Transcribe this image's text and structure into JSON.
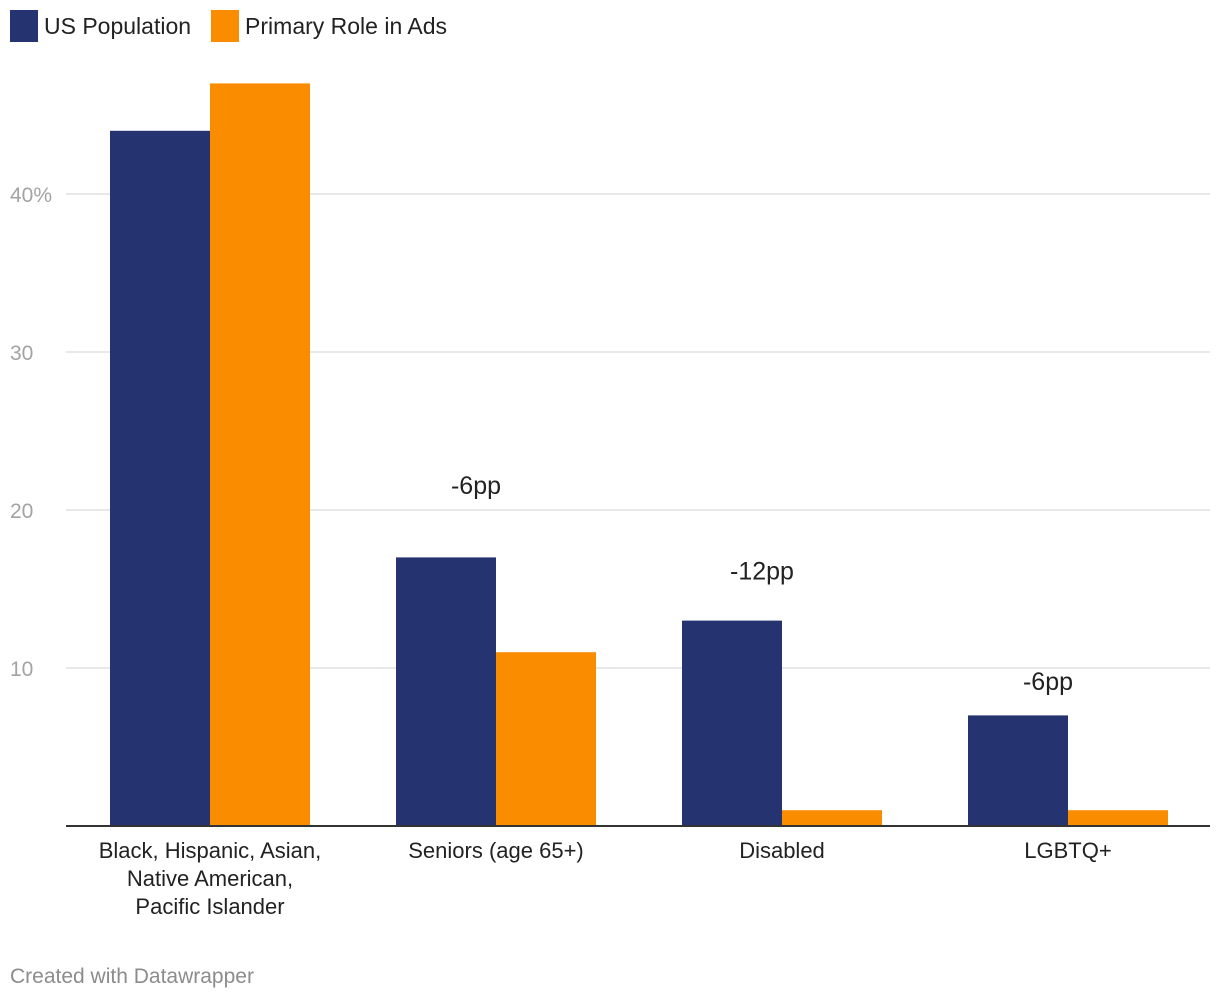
{
  "chart_data": {
    "type": "bar",
    "categories": [
      [
        "Black, Hispanic, Asian,",
        "Native American,",
        "Pacific Islander"
      ],
      [
        "Seniors (age 65+)"
      ],
      [
        "Disabled"
      ],
      [
        "LGBTQ+"
      ]
    ],
    "series": [
      {
        "name": "US Population",
        "color": "#253370",
        "values": [
          44,
          17,
          13,
          7
        ]
      },
      {
        "name": "Primary Role in Ads",
        "color": "#fa8c00",
        "values": [
          47,
          11,
          1,
          1
        ]
      }
    ],
    "yticks": [
      {
        "value": 10,
        "label": "10"
      },
      {
        "value": 20,
        "label": "20"
      },
      {
        "value": 30,
        "label": "30"
      },
      {
        "value": 40,
        "label": "40%"
      }
    ],
    "ylim": [
      0,
      50
    ],
    "annotations": [
      {
        "category_index": 1,
        "text": "-6pp",
        "y": 21
      },
      {
        "category_index": 2,
        "text": "-12pp",
        "y": 15.6
      },
      {
        "category_index": 3,
        "text": "-6pp",
        "y": 8.6
      }
    ],
    "legend_position": "top-left",
    "grid": true
  },
  "footer": {
    "credit": "Created with Datawrapper"
  }
}
